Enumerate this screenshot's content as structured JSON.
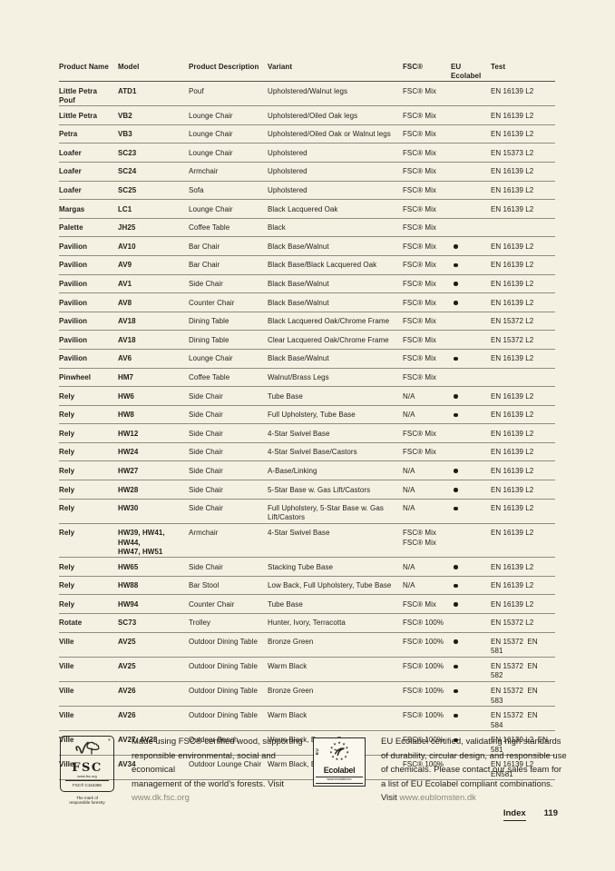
{
  "table": {
    "headers": [
      "Product Name",
      "Model",
      "Product Description",
      "Variant",
      "FSC®",
      "EU Ecolabel",
      "Test"
    ],
    "rows": [
      {
        "name": "Little Petra Pouf",
        "model": "ATD1",
        "description": "Pouf",
        "variant": "Upholstered/Walnut legs",
        "fsc": "FSC® Mix",
        "ecolabel": false,
        "test": "EN 16139 L2"
      },
      {
        "name": "Little Petra",
        "model": "VB2",
        "description": "Lounge Chair",
        "variant": "Upholstered/Oiled Oak legs",
        "fsc": "FSC® Mix",
        "ecolabel": false,
        "test": "EN 16139 L2"
      },
      {
        "name": "Petra",
        "model": "VB3",
        "description": "Lounge Chair",
        "variant": "Upholstered/Oiled Oak or Walnut legs",
        "fsc": "FSC® Mix",
        "ecolabel": false,
        "test": "EN 16139 L2"
      },
      {
        "name": "Loafer",
        "model": "SC23",
        "description": "Lounge Chair",
        "variant": "Upholstered",
        "fsc": "FSC® Mix",
        "ecolabel": false,
        "test": "EN 15373 L2"
      },
      {
        "name": "Loafer",
        "model": "SC24",
        "description": "Armchair",
        "variant": "Upholstered",
        "fsc": "FSC® Mix",
        "ecolabel": false,
        "test": "EN 16139 L2"
      },
      {
        "name": "Loafer",
        "model": "SC25",
        "description": "Sofa",
        "variant": "Upholstered",
        "fsc": "FSC® Mix",
        "ecolabel": false,
        "test": "EN 16139 L2"
      },
      {
        "name": "Margas",
        "model": "LC1",
        "description": "Lounge Chair",
        "variant": "Black Lacquered Oak",
        "fsc": "FSC® Mix",
        "ecolabel": false,
        "test": "EN 16139 L2"
      },
      {
        "name": "Palette",
        "model": "JH25",
        "description": "Coffee Table",
        "variant": "Black",
        "fsc": "FSC® Mix",
        "ecolabel": false,
        "test": ""
      },
      {
        "name": "Pavilion",
        "model": "AV10",
        "description": "Bar Chair",
        "variant": "Black Base/Walnut",
        "fsc": "FSC® Mix",
        "ecolabel": true,
        "test": "EN 16139 L2"
      },
      {
        "name": "Pavilion",
        "model": "AV9",
        "description": "Bar Chair",
        "variant": "Black Base/Black Lacquered Oak",
        "fsc": "FSC® Mix",
        "ecolabel": true,
        "test": "EN 16139 L2"
      },
      {
        "name": "Pavilion",
        "model": "AV1",
        "description": "Side Chair",
        "variant": "Black Base/Walnut",
        "fsc": "FSC® Mix",
        "ecolabel": true,
        "test": "EN 16139 L2"
      },
      {
        "name": "Pavilion",
        "model": "AV8",
        "description": "Counter Chair",
        "variant": "Black Base/Walnut",
        "fsc": "FSC® Mix",
        "ecolabel": true,
        "test": "EN 16139 L2"
      },
      {
        "name": "Pavilion",
        "model": "AV18",
        "description": "Dining Table",
        "variant": "Black Lacquered Oak/Chrome Frame",
        "fsc": "FSC® Mix",
        "ecolabel": false,
        "test": "EN 15372 L2"
      },
      {
        "name": "Pavilion",
        "model": "AV18",
        "description": "Dining Table",
        "variant": "Clear Lacquered Oak/Chrome Frame",
        "fsc": "FSC® Mix",
        "ecolabel": false,
        "test": "EN 15372 L2"
      },
      {
        "name": "Pavilion",
        "model": "AV6",
        "description": "Lounge Chair",
        "variant": "Black Base/Walnut",
        "fsc": "FSC® Mix",
        "ecolabel": true,
        "test": "EN 16139 L2"
      },
      {
        "name": "Pinwheel",
        "model": "HM7",
        "description": "Coffee Table",
        "variant": "Walnut/Brass Legs",
        "fsc": "FSC® Mix",
        "ecolabel": false,
        "test": ""
      },
      {
        "name": "Rely",
        "model": "HW6",
        "description": "Side Chair",
        "variant": "Tube Base",
        "fsc": "N/A",
        "ecolabel": true,
        "test": "EN 16139 L2"
      },
      {
        "name": "Rely",
        "model": "HW8",
        "description": "Side Chair",
        "variant": "Full Upholstery, Tube Base",
        "fsc": "N/A",
        "ecolabel": true,
        "test": "EN 16139 L2"
      },
      {
        "name": "Rely",
        "model": "HW12",
        "description": "Side Chair",
        "variant": "4-Star Swivel Base",
        "fsc": "FSC® Mix",
        "ecolabel": false,
        "test": "EN 16139 L2"
      },
      {
        "name": "Rely",
        "model": "HW24",
        "description": "Side Chair",
        "variant": "4-Star Swivel Base/Castors",
        "fsc": "FSC® Mix",
        "ecolabel": false,
        "test": "EN 16139 L2"
      },
      {
        "name": "Rely",
        "model": "HW27",
        "description": "Side Chair",
        "variant": "A-Base/Linking",
        "fsc": "N/A",
        "ecolabel": true,
        "test": "EN 16139 L2"
      },
      {
        "name": "Rely",
        "model": "HW28",
        "description": "Side Chair",
        "variant": "5-Star Base w. Gas Lift/Castors",
        "fsc": "N/A",
        "ecolabel": true,
        "test": "EN 16139 L2"
      },
      {
        "name": "Rely",
        "model": "HW30",
        "description": "Side Chair",
        "variant": "Full Upholstery, 5-Star Base w. Gas Lift/Castors",
        "fsc": "N/A",
        "ecolabel": true,
        "test": "EN 16139 L2"
      },
      {
        "name": "Rely",
        "model": "HW39, HW41, HW44,\nHW47, HW51",
        "description": "Armchair",
        "variant": "4-Star Swivel Base",
        "fsc": "FSC® Mix\nFSC® Mix",
        "ecolabel": false,
        "test": "EN 16139 L2"
      },
      {
        "name": "Rely",
        "model": "HW65",
        "description": "Side Chair",
        "variant": "Stacking Tube Base",
        "fsc": "N/A",
        "ecolabel": true,
        "test": "EN 16139 L2"
      },
      {
        "name": "Rely",
        "model": "HW88",
        "description": "Bar Stool",
        "variant": "Low Back, Full Upholstery, Tube Base",
        "fsc": "N/A",
        "ecolabel": true,
        "test": "EN 16139 L2"
      },
      {
        "name": "Rely",
        "model": "HW94",
        "description": "Counter Chair",
        "variant": "Tube Base",
        "fsc": "FSC® Mix",
        "ecolabel": true,
        "test": "EN 16139 L2"
      },
      {
        "name": "Rotate",
        "model": "SC73",
        "description": "Trolley",
        "variant": "Hunter, Ivory, Terracotta",
        "fsc": "FSC® 100%",
        "ecolabel": false,
        "test": "EN 15372 L2"
      },
      {
        "name": "Ville",
        "model": "AV25",
        "description": "Outdoor Dining Table",
        "variant": "Bronze Green",
        "fsc": "FSC® 100%",
        "ecolabel": true,
        "test": "EN 15372  EN 581"
      },
      {
        "name": "Ville",
        "model": "AV25",
        "description": "Outdoor Dining Table",
        "variant": "Warm Black",
        "fsc": "FSC® 100%",
        "ecolabel": true,
        "test": "EN 15372  EN 582"
      },
      {
        "name": "Ville",
        "model": "AV26",
        "description": "Outdoor Dining Table",
        "variant": "Bronze Green",
        "fsc": "FSC® 100%",
        "ecolabel": true,
        "test": "EN 15372  EN 583"
      },
      {
        "name": "Ville",
        "model": "AV26",
        "description": "Outdoor Dining Table",
        "variant": "Warm Black",
        "fsc": "FSC® 100%",
        "ecolabel": true,
        "test": "EN 15372  EN 584"
      },
      {
        "name": "Ville",
        "model": "AV27, AV28",
        "description": "Outdoor Bench",
        "variant": "Warm Black, Bronze Green",
        "fsc": "FSC® 100%",
        "ecolabel": true,
        "test": "EN 16139 L2  EN 581"
      },
      {
        "name": "Ville",
        "model": "AV34",
        "description": "Outdoor Lounge Chair",
        "variant": "Warm Black, Bronze Green",
        "fsc": "FSC® 100%",
        "ecolabel": false,
        "test": "EN 16139 L2  EN581"
      }
    ]
  },
  "footer": {
    "fsc": {
      "acronym": "FSC",
      "reg_mark": "®",
      "url_small": "www.fsc.org",
      "license": "FSC® C154386",
      "tagline": "The mark of\nresponsible forestry",
      "text": "Made using FSC® certified wood, supporting\nresponsible environmental, social and economical\nmanagement of the world's forests. Visit",
      "link": "www.dk.fsc.org"
    },
    "ecolabel": {
      "eu_mark": "EU",
      "name": "Ecolabel",
      "url_small": "www.ecolabel.eu",
      "text": "EU Ecolabel certified, validating high standards\nof durability, circular design, and responsible use\nof chemicals. Please contact our sales team for\na list of EU Ecolabel compliant combinations.",
      "link_prefix": "Visit ",
      "link": "www.eublomsten.dk"
    },
    "index_label": "Index",
    "page_number": "119"
  },
  "colors": {
    "background": "#f4f1e3",
    "text": "#23221c",
    "rule": "#8f8d7f",
    "link_gray": "#8a8779"
  }
}
